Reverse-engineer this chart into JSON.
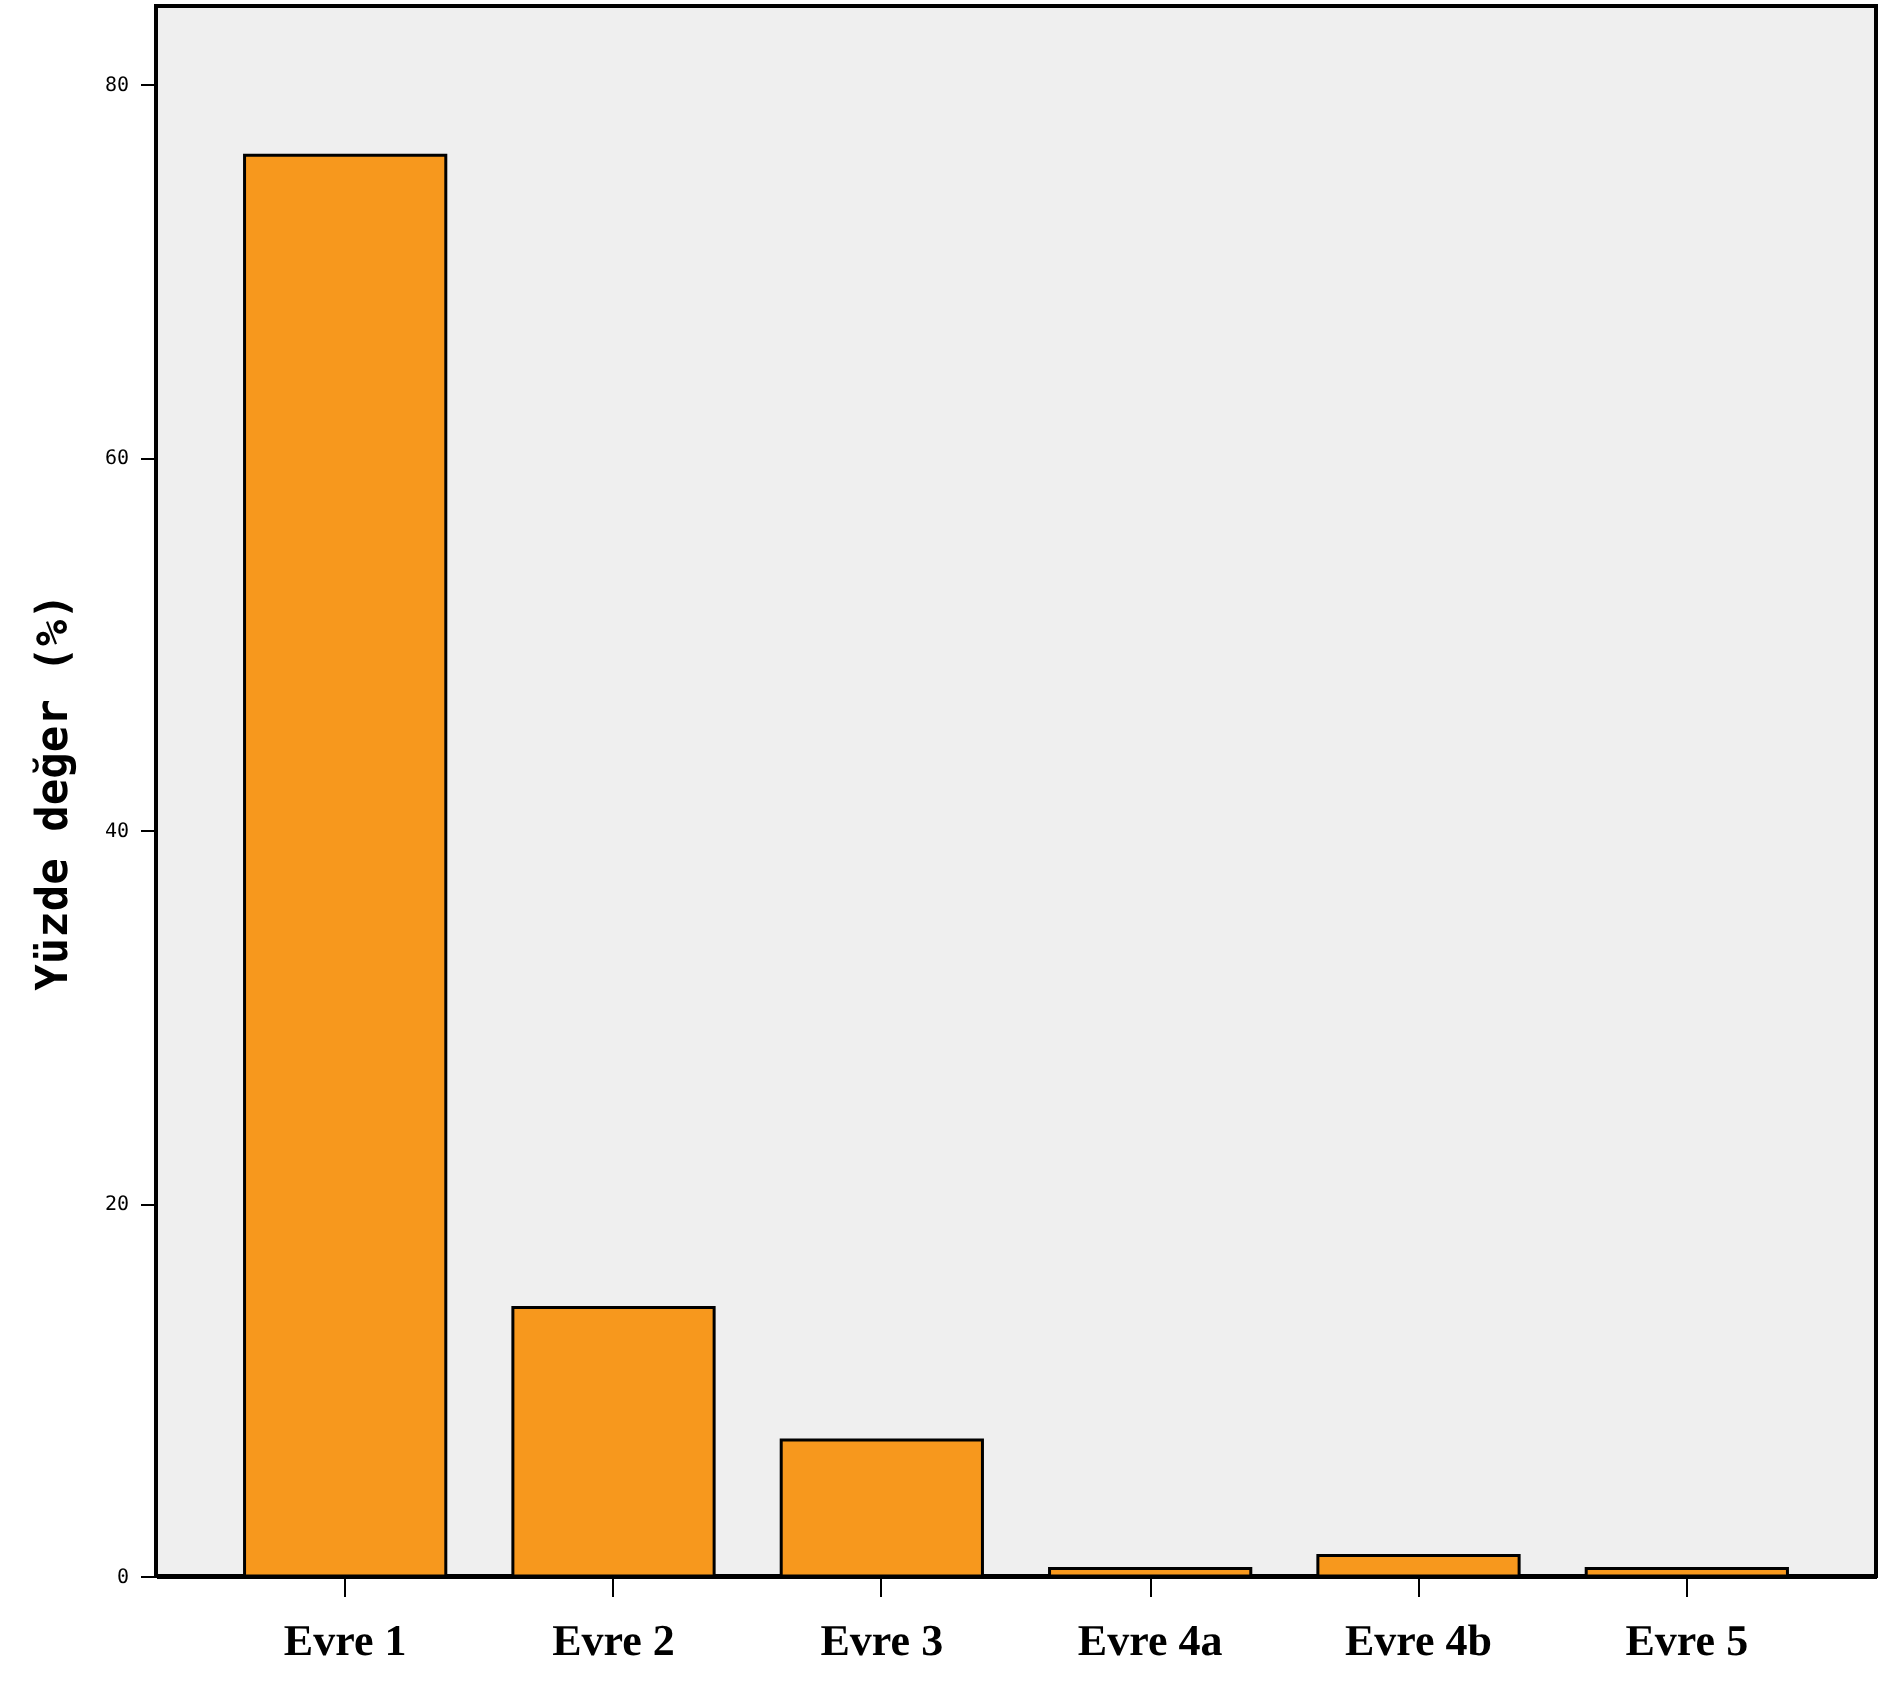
{
  "chart_data": {
    "type": "bar",
    "ylabel": "Yüzde değer (%)",
    "categories": [
      "Evre 1",
      "Evre 2",
      "Evre 3",
      "Evre 4a",
      "Evre 4b",
      "Evre 5"
    ],
    "values": [
      76.2,
      14.4,
      7.3,
      0.4,
      1.1,
      0.4
    ],
    "color": "#f7981d",
    "ylim": [
      0,
      84.2
    ],
    "yticks": [
      0,
      20,
      40,
      60,
      80
    ],
    "grid": false
  }
}
